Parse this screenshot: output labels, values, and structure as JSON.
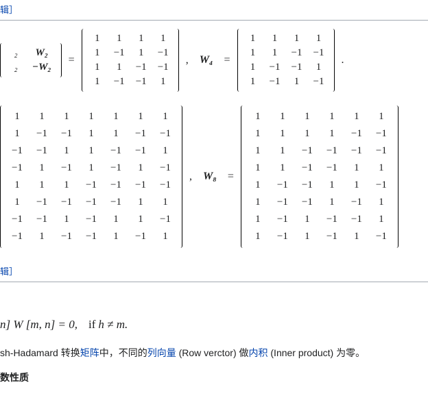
{
  "edit_link": "辑］",
  "hr_color": "#a2a9b1",
  "eq1": {
    "lhs_block": {
      "r1c1": "₂",
      "r1c2": "W₂",
      "r2c1": "₂",
      "r2c2": "−W₂"
    },
    "m4a": {
      "name": "",
      "rows": [
        [
          "1",
          "1",
          "1",
          "1"
        ],
        [
          "1",
          "−1",
          "1",
          "−1"
        ],
        [
          "1",
          "1",
          "−1",
          "−1"
        ],
        [
          "1",
          "−1",
          "−1",
          "1"
        ]
      ]
    },
    "m4b": {
      "name": "W₄",
      "rows": [
        [
          "1",
          "1",
          "1",
          "1"
        ],
        [
          "1",
          "1",
          "−1",
          "−1"
        ],
        [
          "1",
          "−1",
          "−1",
          "1"
        ],
        [
          "1",
          "−1",
          "1",
          "−1"
        ]
      ]
    }
  },
  "eq2": {
    "m8a": {
      "rows": [
        [
          "1",
          "1",
          "1",
          "1",
          "1",
          "1",
          "1"
        ],
        [
          "1",
          "−1",
          "−1",
          "1",
          "1",
          "−1",
          "−1"
        ],
        [
          "−1",
          "−1",
          "1",
          "1",
          "−1",
          "−1",
          "1"
        ],
        [
          "−1",
          "1",
          "−1",
          "1",
          "−1",
          "1",
          "−1"
        ],
        [
          "1",
          "1",
          "1",
          "−1",
          "−1",
          "−1",
          "−1"
        ],
        [
          "1",
          "−1",
          "−1",
          "−1",
          "−1",
          "1",
          "1"
        ],
        [
          "−1",
          "−1",
          "1",
          "−1",
          "1",
          "1",
          "−1"
        ],
        [
          "−1",
          "1",
          "−1",
          "−1",
          "1",
          "−1",
          "1"
        ]
      ]
    },
    "m8b": {
      "name": "W₈",
      "rows": [
        [
          "1",
          "1",
          "1",
          "1",
          "1",
          "1"
        ],
        [
          "1",
          "1",
          "1",
          "1",
          "−1",
          "−1"
        ],
        [
          "1",
          "1",
          "−1",
          "−1",
          "−1",
          "−1"
        ],
        [
          "1",
          "1",
          "−1",
          "−1",
          "1",
          "1"
        ],
        [
          "1",
          "−1",
          "−1",
          "1",
          "1",
          "−1"
        ],
        [
          "1",
          "−1",
          "−1",
          "1",
          "−1",
          "1"
        ],
        [
          "1",
          "−1",
          "1",
          "−1",
          "−1",
          "1"
        ],
        [
          "1",
          "−1",
          "1",
          "−1",
          "1",
          "−1"
        ]
      ]
    }
  },
  "edit_link2": "辑］",
  "formula": {
    "lhs": "n] W [m, n] = 0,",
    "cond_word": "if",
    "cond": "h ≠ m.",
    "font_size": 17
  },
  "paragraph": {
    "pre": "sh-Hadamard 转换",
    "link1": "矩阵",
    "mid1": "中，不同的",
    "link2": "列向量",
    "mid2": " (Row verctor) 做",
    "link3": "内积",
    "post": " (Inner product) 为零。"
  },
  "footer": "数性质",
  "link_color": "#0645ad",
  "text_color": "#202122"
}
